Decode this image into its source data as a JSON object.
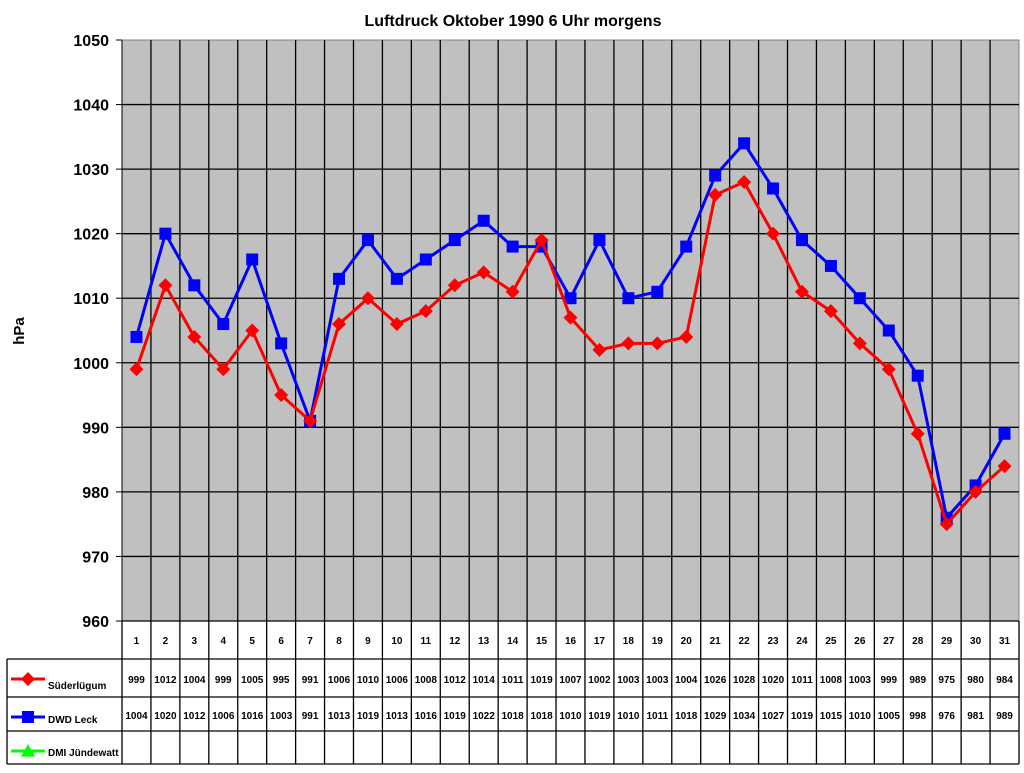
{
  "chart_data": {
    "type": "line",
    "title": "Luftdruck Oktober 1990 6 Uhr morgens",
    "xlabel": "",
    "ylabel": "hPa",
    "ylim": [
      960,
      1050
    ],
    "yticks": [
      960,
      970,
      980,
      990,
      1000,
      1010,
      1020,
      1030,
      1040,
      1050
    ],
    "grid": true,
    "legend_position": "data-table-left",
    "plot_background": "#C0C0C0",
    "categories": [
      "1",
      "2",
      "3",
      "4",
      "5",
      "6",
      "7",
      "8",
      "9",
      "10",
      "11",
      "12",
      "13",
      "14",
      "15",
      "16",
      "17",
      "18",
      "19",
      "20",
      "21",
      "22",
      "23",
      "24",
      "25",
      "26",
      "27",
      "28",
      "29",
      "30",
      "31"
    ],
    "series": [
      {
        "name": "Süderlügum",
        "color": "#FF0000",
        "marker": "diamond",
        "values": [
          999,
          1012,
          1004,
          999,
          1005,
          995,
          991,
          1006,
          1010,
          1006,
          1008,
          1012,
          1014,
          1011,
          1019,
          1007,
          1002,
          1003,
          1003,
          1004,
          1026,
          1028,
          1020,
          1011,
          1008,
          1003,
          999,
          989,
          975,
          980,
          984
        ]
      },
      {
        "name": "DWD Leck",
        "color": "#0000FF",
        "marker": "square",
        "values": [
          1004,
          1020,
          1012,
          1006,
          1016,
          1003,
          991,
          1013,
          1019,
          1013,
          1016,
          1019,
          1022,
          1018,
          1018,
          1010,
          1019,
          1010,
          1011,
          1018,
          1029,
          1034,
          1027,
          1019,
          1015,
          1010,
          1005,
          998,
          976,
          981,
          989
        ]
      },
      {
        "name": "DMI Jündewatt",
        "color": "#00FF00",
        "marker": "triangle",
        "values": [
          null,
          null,
          null,
          null,
          null,
          null,
          null,
          null,
          null,
          null,
          null,
          null,
          null,
          null,
          null,
          null,
          null,
          null,
          null,
          null,
          null,
          null,
          null,
          null,
          null,
          null,
          null,
          null,
          null,
          null,
          null
        ]
      }
    ]
  }
}
